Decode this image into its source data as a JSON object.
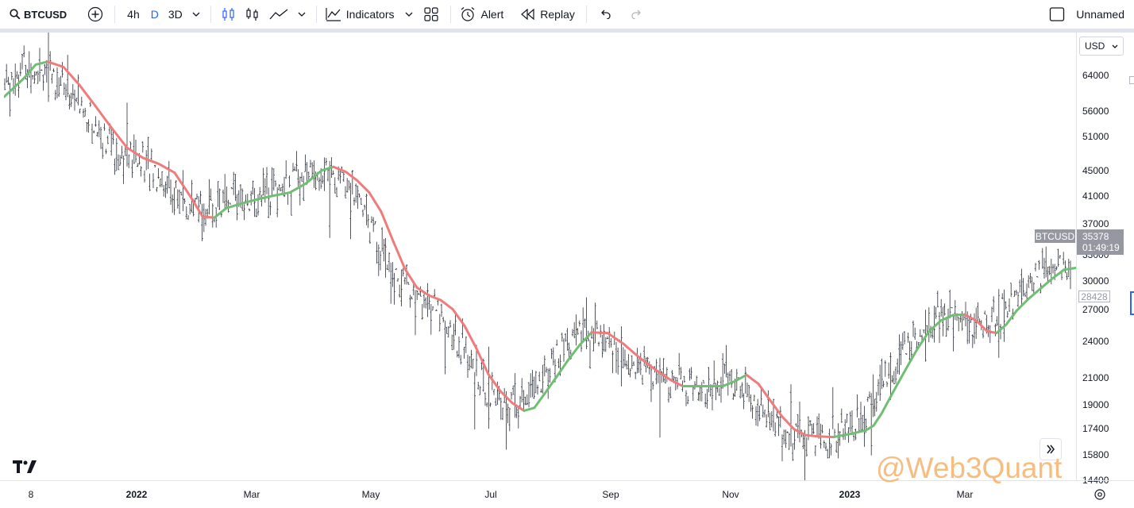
{
  "toolbar": {
    "symbol": "BTCUSD",
    "timeframes": [
      "4h",
      "D",
      "3D"
    ],
    "active_timeframe": "D",
    "indicators_label": "Indicators",
    "alert_label": "Alert",
    "replay_label": "Replay",
    "layout_name": "Unnamed"
  },
  "currency": "USD",
  "price_axis": {
    "ticks": [
      "64000",
      "56000",
      "51000",
      "45000",
      "41000",
      "37000",
      "33000",
      "30000",
      "27000",
      "24000",
      "21000",
      "19000",
      "17400",
      "15800",
      "14400"
    ]
  },
  "time_axis": {
    "labels": [
      "8",
      "2022",
      "Mar",
      "May",
      "Jul",
      "Sep",
      "Nov",
      "2023",
      "Mar"
    ]
  },
  "price_badge": {
    "symbol": "BTCUSD",
    "price": "35378",
    "countdown": "01:49:19",
    "last_value": "28428"
  },
  "watermark": "@Web3Quant",
  "colors": {
    "bars": "#2a2e39",
    "ma_up": "#6fbf73",
    "ma_down": "#f07b7b",
    "accent": "#2962ff"
  },
  "chart_data": {
    "type": "line",
    "log_scale": true,
    "series": [
      {
        "values": [
          [
            0,
            4.77
          ],
          [
            25,
            4.801
          ],
          [
            40,
            4.824
          ],
          [
            55,
            4.829
          ],
          [
            75,
            4.82
          ],
          [
            95,
            4.79
          ],
          [
            115,
            4.755
          ],
          [
            135,
            4.719
          ],
          [
            155,
            4.685
          ],
          [
            175,
            4.668
          ],
          [
            195,
            4.658
          ],
          [
            215,
            4.643
          ],
          [
            235,
            4.603
          ],
          [
            250,
            4.57
          ],
          [
            265,
            4.568
          ],
          [
            280,
            4.584
          ],
          [
            300,
            4.592
          ],
          [
            320,
            4.599
          ],
          [
            340,
            4.605
          ],
          [
            360,
            4.61
          ],
          [
            380,
            4.625
          ],
          [
            400,
            4.647
          ],
          [
            415,
            4.653
          ],
          [
            430,
            4.645
          ],
          [
            445,
            4.63
          ],
          [
            460,
            4.61
          ],
          [
            475,
            4.578
          ],
          [
            490,
            4.529
          ],
          [
            505,
            4.482
          ],
          [
            520,
            4.451
          ],
          [
            535,
            4.438
          ],
          [
            550,
            4.43
          ],
          [
            565,
            4.415
          ],
          [
            580,
            4.387
          ],
          [
            595,
            4.349
          ],
          [
            610,
            4.306
          ],
          [
            625,
            4.278
          ],
          [
            640,
            4.258
          ],
          [
            655,
            4.245
          ],
          [
            668,
            4.25
          ],
          [
            680,
            4.272
          ],
          [
            695,
            4.3
          ],
          [
            710,
            4.329
          ],
          [
            725,
            4.355
          ],
          [
            740,
            4.376
          ],
          [
            760,
            4.375
          ],
          [
            780,
            4.357
          ],
          [
            800,
            4.334
          ],
          [
            820,
            4.314
          ],
          [
            840,
            4.296
          ],
          [
            855,
            4.286
          ],
          [
            870,
            4.286
          ],
          [
            890,
            4.286
          ],
          [
            905,
            4.286
          ],
          [
            920,
            4.294
          ],
          [
            935,
            4.305
          ],
          [
            950,
            4.29
          ],
          [
            965,
            4.262
          ],
          [
            980,
            4.235
          ],
          [
            995,
            4.214
          ],
          [
            1010,
            4.204
          ],
          [
            1025,
            4.202
          ],
          [
            1045,
            4.201
          ],
          [
            1065,
            4.206
          ],
          [
            1085,
            4.212
          ],
          [
            1095,
            4.22
          ],
          [
            1105,
            4.24
          ],
          [
            1120,
            4.277
          ],
          [
            1135,
            4.313
          ],
          [
            1150,
            4.348
          ],
          [
            1165,
            4.378
          ],
          [
            1180,
            4.396
          ],
          [
            1195,
            4.405
          ],
          [
            1210,
            4.406
          ],
          [
            1225,
            4.395
          ],
          [
            1238,
            4.378
          ],
          [
            1250,
            4.375
          ],
          [
            1262,
            4.389
          ],
          [
            1275,
            4.412
          ],
          [
            1290,
            4.432
          ],
          [
            1305,
            4.449
          ],
          [
            1320,
            4.466
          ],
          [
            1335,
            4.481
          ],
          [
            1350,
            4.484
          ]
        ]
      }
    ]
  }
}
